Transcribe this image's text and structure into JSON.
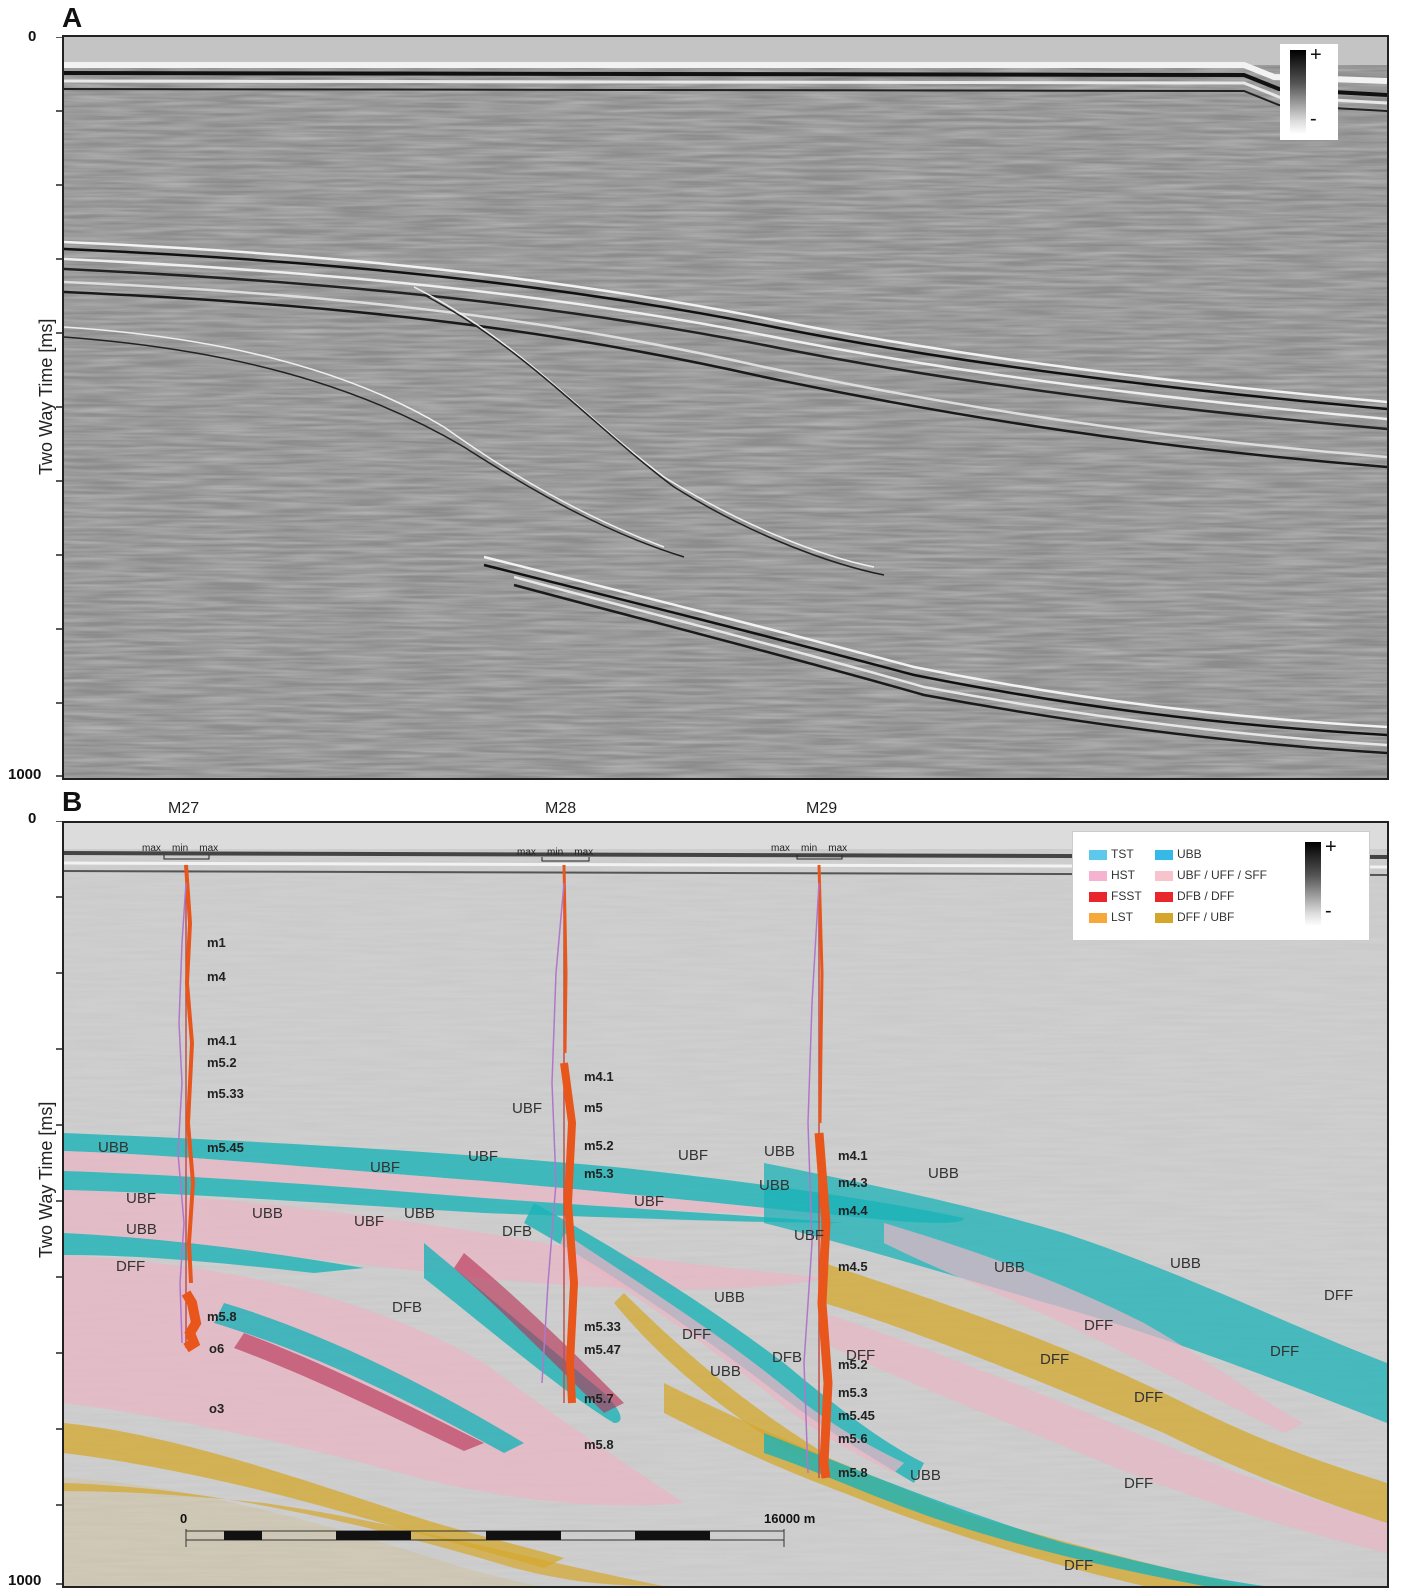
{
  "panels": {
    "a": {
      "letter": "A",
      "y_top": "0",
      "y_bottom": "1000",
      "y_title": "Two Way Time [ms]"
    },
    "b": {
      "letter": "B",
      "y_top": "0",
      "y_bottom": "1000",
      "y_title": "Two Way Time [ms]"
    }
  },
  "colorbar": {
    "plus": "+",
    "minus": "-"
  },
  "wells": [
    {
      "name": "M27",
      "log_max_left": "max",
      "log_min": "min",
      "log_max_right": "max",
      "horizons": [
        "m1",
        "m4",
        "m4.1",
        "m5.2",
        "m5.33",
        "m5.45",
        "m5.8",
        "o6",
        "o3"
      ]
    },
    {
      "name": "M28",
      "log_max_left": "max",
      "log_min": "min",
      "log_max_right": "max",
      "horizons": [
        "m4.1",
        "m5",
        "m5.2",
        "m5.3",
        "m5.33",
        "m5.47",
        "m5.7",
        "m5.8"
      ]
    },
    {
      "name": "M29",
      "log_max_left": "max",
      "log_min": "min",
      "log_max_right": "max",
      "horizons": [
        "m4.1",
        "m4.3",
        "m4.4",
        "m4.5",
        "m5.2",
        "m5.3",
        "m5.45",
        "m5.6",
        "m5.8"
      ]
    }
  ],
  "legend": {
    "left": [
      {
        "label": "TST",
        "color": "#5ec8ec"
      },
      {
        "label": "HST",
        "color": "#f5b3cf"
      },
      {
        "label": "FSST",
        "color": "#e8262b"
      },
      {
        "label": "LST",
        "color": "#f7a83a"
      }
    ],
    "right": [
      {
        "label": "UBB",
        "color": "#35b9e6"
      },
      {
        "label": "UBF / UFF / SFF",
        "color": "#f7c3cd"
      },
      {
        "label": "DFB / DFF",
        "color": "#e8262b"
      },
      {
        "label": "DFF / UBF",
        "color": "#d4a72c"
      }
    ]
  },
  "unit_labels": [
    "UBB",
    "UBF",
    "UBB",
    "DFF",
    "UBB",
    "UBF",
    "UBB",
    "DFB",
    "UBF",
    "UBF",
    "DFB",
    "UBF",
    "UBF",
    "UBF",
    "UBB",
    "UBB",
    "UBF",
    "UBB",
    "DFF",
    "UBB",
    "DFB",
    "DFF",
    "UBB",
    "UBB",
    "UBB",
    "DFF",
    "DFF",
    "DFF",
    "DFF",
    "DFF",
    "UBB",
    "DFF",
    "DFF"
  ],
  "scale_bar": {
    "start": "0",
    "end": "16000 m"
  }
}
